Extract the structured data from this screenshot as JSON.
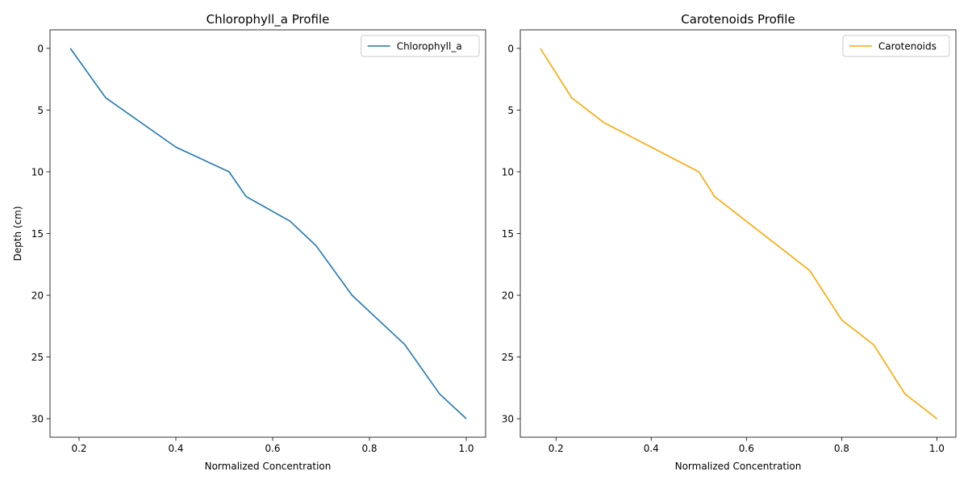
{
  "chart_data": [
    {
      "type": "line",
      "title": "Chlorophyll_a Profile",
      "xlabel": "Normalized Concentration",
      "ylabel": "Depth (cm)",
      "xlim": [
        0.14,
        1.04
      ],
      "ylim": [
        31.5,
        -1.5
      ],
      "y_inverted": true,
      "grid": false,
      "legend_position": "upper-right",
      "xticks": [
        0.2,
        0.4,
        0.6,
        0.8,
        1.0
      ],
      "xtick_labels": [
        "0.2",
        "0.4",
        "0.6",
        "0.8",
        "1.0"
      ],
      "yticks": [
        0,
        5,
        10,
        15,
        20,
        25,
        30
      ],
      "ytick_labels": [
        "0",
        "5",
        "10",
        "15",
        "20",
        "25",
        "30"
      ],
      "series": [
        {
          "name": "Chlorophyll_a",
          "color": "#1f77b4",
          "x": [
            0.182,
            0.255,
            0.4,
            0.51,
            0.545,
            0.636,
            0.69,
            0.764,
            0.873,
            0.945,
            1.0
          ],
          "y": [
            0,
            4,
            8,
            10,
            12,
            14,
            16,
            20,
            24,
            28,
            30
          ]
        }
      ]
    },
    {
      "type": "line",
      "title": "Carotenoids Profile",
      "xlabel": "Normalized Concentration",
      "ylabel": "",
      "xlim": [
        0.125,
        1.04
      ],
      "ylim": [
        31.5,
        -1.5
      ],
      "y_inverted": true,
      "grid": false,
      "legend_position": "upper-right",
      "xticks": [
        0.2,
        0.4,
        0.6,
        0.8,
        1.0
      ],
      "xtick_labels": [
        "0.2",
        "0.4",
        "0.6",
        "0.8",
        "1.0"
      ],
      "yticks": [
        0,
        5,
        10,
        15,
        20,
        25,
        30
      ],
      "ytick_labels": [
        "0",
        "5",
        "10",
        "15",
        "20",
        "25",
        "30"
      ],
      "series": [
        {
          "name": "Carotenoids",
          "color": "#ffa500",
          "x": [
            0.167,
            0.233,
            0.3,
            0.5,
            0.533,
            0.733,
            0.8,
            0.867,
            0.933,
            1.0
          ],
          "y": [
            0,
            4,
            6,
            10,
            12,
            18,
            22,
            24,
            28,
            30
          ]
        }
      ]
    }
  ]
}
